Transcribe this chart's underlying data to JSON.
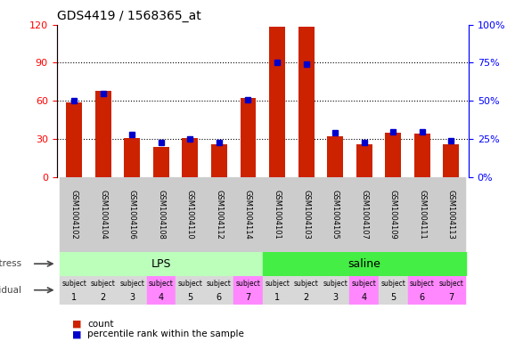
{
  "title": "GDS4419 / 1568365_at",
  "samples": [
    "GSM1004102",
    "GSM1004104",
    "GSM1004106",
    "GSM1004108",
    "GSM1004110",
    "GSM1004112",
    "GSM1004114",
    "GSM1004101",
    "GSM1004103",
    "GSM1004105",
    "GSM1004107",
    "GSM1004109",
    "GSM1004111",
    "GSM1004113"
  ],
  "counts": [
    59,
    68,
    31,
    24,
    31,
    26,
    62,
    118,
    118,
    32,
    26,
    35,
    34,
    26
  ],
  "percentile_ranks": [
    50,
    55,
    28,
    23,
    25,
    23,
    51,
    75,
    74,
    29,
    23,
    30,
    30,
    24
  ],
  "ylim_left": [
    0,
    120
  ],
  "ylim_right": [
    0,
    100
  ],
  "yticks_left": [
    0,
    30,
    60,
    90,
    120
  ],
  "yticks_right": [
    0,
    25,
    50,
    75,
    100
  ],
  "bar_color": "#cc2200",
  "marker_color": "#0000cc",
  "bg_color": "#ffffff",
  "stress_groups": [
    {
      "label": "LPS",
      "start": 0,
      "end": 7,
      "color": "#bbffbb"
    },
    {
      "label": "saline",
      "start": 7,
      "end": 14,
      "color": "#44ee44"
    }
  ],
  "individual_labels": [
    "subject\n1",
    "subject\n2",
    "subject\n3",
    "subject\n4",
    "subject\n5",
    "subject\n6",
    "subject\n7",
    "subject\n1",
    "subject\n2",
    "subject\n3",
    "subject\n4",
    "subject\n5",
    "subject\n6",
    "subject\n7"
  ],
  "individual_colors": [
    "#d8d8d8",
    "#d8d8d8",
    "#d8d8d8",
    "#ff88ff",
    "#d8d8d8",
    "#d8d8d8",
    "#ff88ff",
    "#d8d8d8",
    "#d8d8d8",
    "#d8d8d8",
    "#ff88ff",
    "#d8d8d8",
    "#ff88ff",
    "#ff88ff"
  ],
  "xticklabel_bg": "#cccccc",
  "legend_count_color": "#cc2200",
  "legend_percentile_color": "#0000cc",
  "label_color": "#444444"
}
